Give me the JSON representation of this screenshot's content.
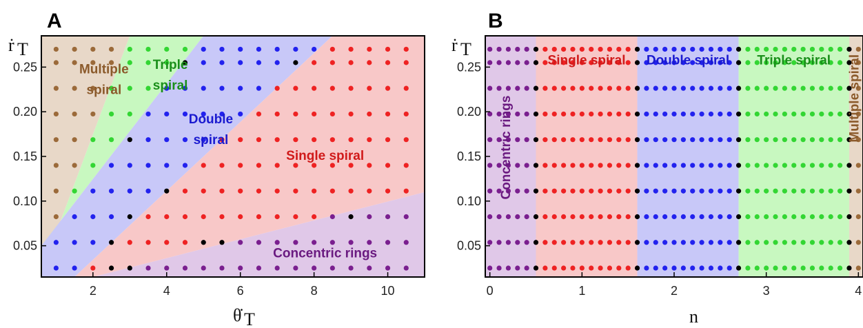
{
  "chart_data": [
    {
      "panel": "A",
      "type": "scatter",
      "xlabel": "θ̇",
      "xlabel_sub": "T",
      "ylabel": "ṙ",
      "ylabel_sub": "T",
      "xlim": [
        0.6,
        11.0
      ],
      "ylim": [
        0.015,
        0.285
      ],
      "xticks": [
        2,
        4,
        6,
        8,
        10
      ],
      "yticks": [
        0.05,
        0.1,
        0.15,
        0.2,
        0.25
      ],
      "ytick_labels": [
        "0.05",
        "0.10",
        "0.15",
        "0.20",
        "0.25"
      ],
      "grid_x": [
        1.0,
        1.5,
        2.0,
        2.5,
        3.0,
        3.5,
        4.0,
        4.5,
        5.0,
        5.5,
        6.0,
        6.5,
        7.0,
        7.5,
        8.0,
        8.5,
        9.0,
        9.5,
        10.0,
        10.5
      ],
      "grid_y": [
        0.025,
        0.05375,
        0.0825,
        0.11125,
        0.14,
        0.16875,
        0.1975,
        0.22625,
        0.255,
        0.27
      ],
      "colors": {
        "multiple": "#9b6a3a",
        "triple": "#33d633",
        "double": "#2222ee",
        "single": "#ee2222",
        "rings": "#7a1f8f",
        "boundary": "#000000"
      },
      "region_colors": {
        "multiple": "#e8d8c8",
        "triple": "#c8f8c0",
        "double": "#c8c8f8",
        "single": "#f8c8c8",
        "rings": "#e0c8e8"
      },
      "regions": [
        {
          "name": "multiple",
          "polygon": [
            [
              0.6,
              0.285
            ],
            [
              3.0,
              0.285
            ],
            [
              0.6,
              0.02
            ]
          ]
        },
        {
          "name": "triple",
          "polygon": [
            [
              3.0,
              0.285
            ],
            [
              5.0,
              0.285
            ],
            [
              0.6,
              0.05
            ],
            [
              0.6,
              0.02
            ]
          ]
        },
        {
          "name": "double",
          "polygon": [
            [
              5.0,
              0.285
            ],
            [
              8.5,
              0.285
            ],
            [
              1.5,
              0.015
            ],
            [
              0.6,
              0.015
            ],
            [
              0.6,
              0.05
            ]
          ]
        },
        {
          "name": "single",
          "polygon": [
            [
              8.5,
              0.285
            ],
            [
              11.0,
              0.285
            ],
            [
              11.0,
              0.11
            ],
            [
              2.0,
              0.015
            ],
            [
              1.5,
              0.015
            ]
          ]
        },
        {
          "name": "rings",
          "polygon": [
            [
              2.0,
              0.015
            ],
            [
              11.0,
              0.11
            ],
            [
              11.0,
              0.015
            ]
          ]
        }
      ],
      "labels": [
        {
          "text": "Multiple",
          "x": 2.3,
          "y": 0.243,
          "color": "#8b5a2b"
        },
        {
          "text": "spiral",
          "x": 2.3,
          "y": 0.22,
          "color": "#8b5a2b"
        },
        {
          "text": "Triple",
          "x": 4.1,
          "y": 0.248,
          "color": "#1a8f1a"
        },
        {
          "text": "spiral",
          "x": 4.1,
          "y": 0.225,
          "color": "#1a8f1a"
        },
        {
          "text": "Double",
          "x": 5.2,
          "y": 0.187,
          "color": "#1a1ad0"
        },
        {
          "text": "spiral",
          "x": 5.2,
          "y": 0.164,
          "color": "#1a1ad0"
        },
        {
          "text": "Single spiral",
          "x": 8.3,
          "y": 0.146,
          "color": "#d01a1a"
        },
        {
          "text": "Concentric rings",
          "x": 8.3,
          "y": 0.037,
          "color": "#6a1a80"
        }
      ]
    },
    {
      "panel": "B",
      "type": "scatter",
      "xlabel": "n",
      "ylabel": "ṙ",
      "ylabel_sub": "T",
      "xlim": [
        -0.05,
        4.05
      ],
      "ylim": [
        0.015,
        0.285
      ],
      "xticks": [
        0,
        1,
        2,
        3,
        4
      ],
      "yticks": [
        0.05,
        0.1,
        0.15,
        0.2,
        0.25
      ],
      "ytick_labels": [
        "0.05",
        "0.10",
        "0.15",
        "0.20",
        "0.25"
      ],
      "grid_x_step": 0.1,
      "grid_x_range": [
        0.0,
        4.0
      ],
      "grid_y": [
        0.025,
        0.05375,
        0.0825,
        0.11125,
        0.14,
        0.16875,
        0.1975,
        0.22625,
        0.255,
        0.27
      ],
      "region_bounds": [
        {
          "name": "rings",
          "xmin": -0.05,
          "xmax": 0.5,
          "color": "#e0c8e8"
        },
        {
          "name": "single",
          "xmin": 0.5,
          "xmax": 1.6,
          "color": "#f8c8c8"
        },
        {
          "name": "double",
          "xmin": 1.6,
          "xmax": 2.7,
          "color": "#c8c8f8"
        },
        {
          "name": "triple",
          "xmin": 2.7,
          "xmax": 3.9,
          "color": "#c8f8c0"
        },
        {
          "name": "multiple",
          "xmin": 3.9,
          "xmax": 4.05,
          "color": "#e8d8c8"
        }
      ],
      "labels": [
        {
          "text": "Single spiral",
          "x": 1.05,
          "y": 0.253,
          "color": "#d01a1a"
        },
        {
          "text": "Double spiral",
          "x": 2.15,
          "y": 0.253,
          "color": "#1a1ad0"
        },
        {
          "text": "Triple spiral",
          "x": 3.3,
          "y": 0.253,
          "color": "#1a8f1a"
        },
        {
          "text": "Concentric rings",
          "x": 0.22,
          "y": 0.16,
          "color": "#6a1a80",
          "rotate": true
        },
        {
          "text": "Multiple spiral",
          "x": 4.0,
          "y": 0.215,
          "color": "#8b5a2b",
          "rotate": true
        }
      ]
    }
  ]
}
